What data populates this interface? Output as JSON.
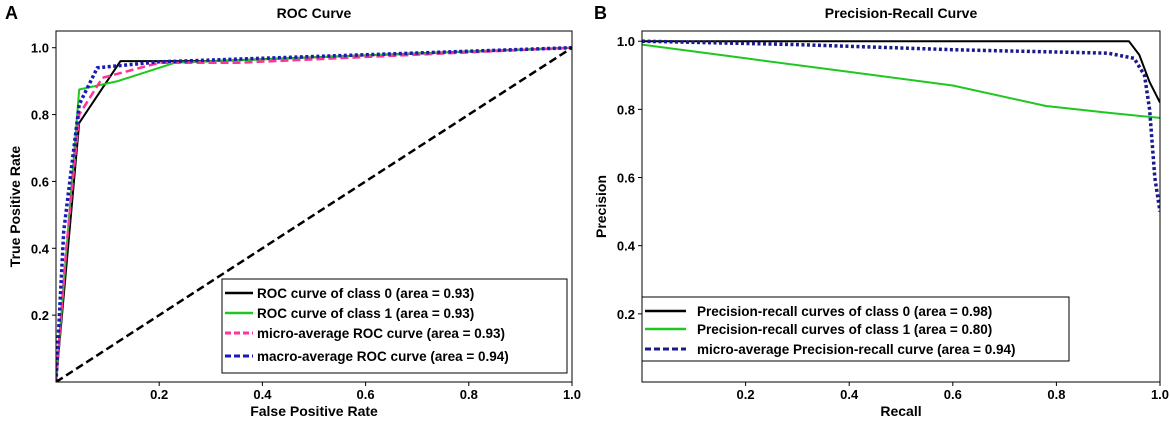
{
  "chart_data": [
    {
      "panel": "A",
      "type": "line",
      "title": "ROC Curve",
      "xlabel": "False Positive Rate",
      "ylabel": "True Positive Rate",
      "xlim": [
        0,
        1
      ],
      "ylim": [
        0,
        1.05
      ],
      "xticks": [
        0.2,
        0.4,
        0.6,
        0.8,
        1.0
      ],
      "xtick_labels": [
        "0.2",
        "0.4",
        "0.6",
        "0.8",
        "1.0"
      ],
      "yticks": [
        0.2,
        0.4,
        0.6,
        0.8,
        1.0
      ],
      "ytick_labels": [
        "0.2",
        "0.4",
        "0.6",
        "0.8",
        "1.0"
      ],
      "grid": false,
      "legend_position": "bottom-right",
      "series": [
        {
          "name": "ROC curve of class 0 (area = 0.93)",
          "color": "#000000",
          "style": "solid",
          "x": [
            0,
            0.045,
            0.125,
            0.3,
            1.0
          ],
          "y": [
            0,
            0.775,
            0.96,
            0.96,
            1.0
          ]
        },
        {
          "name": "ROC curve of class 1 (area = 0.93)",
          "color": "#1ec81e",
          "style": "solid",
          "x": [
            0,
            0.045,
            0.12,
            0.23,
            1.0
          ],
          "y": [
            0,
            0.875,
            0.9,
            0.955,
            1.0
          ]
        },
        {
          "name": "micro-average ROC curve (area = 0.93)",
          "color": "#ff3399",
          "style": "dashed",
          "x": [
            0,
            0.02,
            0.045,
            0.09,
            0.2,
            0.35,
            1.0
          ],
          "y": [
            0,
            0.4,
            0.8,
            0.91,
            0.955,
            0.955,
            1.0
          ]
        },
        {
          "name": "macro-average ROC curve (area = 0.94)",
          "color": "#1a1ab4",
          "style": "dotted",
          "x": [
            0,
            0.015,
            0.045,
            0.08,
            0.2,
            1.0
          ],
          "y": [
            0,
            0.45,
            0.83,
            0.94,
            0.958,
            1.0
          ]
        },
        {
          "name": "",
          "color": "#000000",
          "style": "dashed",
          "legend": false,
          "x": [
            0,
            1
          ],
          "y": [
            0,
            1
          ]
        }
      ]
    },
    {
      "panel": "B",
      "type": "line",
      "title": "Precision-Recall Curve",
      "xlabel": "Recall",
      "ylabel": "Precision",
      "xlim": [
        0,
        1
      ],
      "ylim": [
        0,
        1.03
      ],
      "xticks": [
        0.2,
        0.4,
        0.6,
        0.8,
        1.0
      ],
      "xtick_labels": [
        "0.2",
        "0.4",
        "0.6",
        "0.8",
        "1.0"
      ],
      "yticks": [
        0.2,
        0.4,
        0.6,
        0.8,
        1.0
      ],
      "ytick_labels": [
        "0.2",
        "0.4",
        "0.6",
        "0.8",
        "1.0"
      ],
      "grid": false,
      "legend_position": "bottom-left",
      "series": [
        {
          "name": "Precision-recall curves of class 0 (area = 0.98)",
          "color": "#000000",
          "style": "solid",
          "x": [
            0,
            0.94,
            0.96,
            0.98,
            1.0
          ],
          "y": [
            1.0,
            1.0,
            0.96,
            0.88,
            0.82
          ]
        },
        {
          "name": "Precision-recall curves of class 1 (area = 0.80)",
          "color": "#1ec81e",
          "style": "solid",
          "x": [
            0,
            0.2,
            0.4,
            0.6,
            0.78,
            0.9,
            1.0
          ],
          "y": [
            0.99,
            0.95,
            0.91,
            0.87,
            0.81,
            0.79,
            0.775
          ]
        },
        {
          "name": "micro-average Precision-recall curve (area = 0.94)",
          "color": "#1a1a8c",
          "style": "dotted",
          "x": [
            0,
            0.3,
            0.6,
            0.9,
            0.95,
            0.97,
            0.98,
            0.99,
            1.0
          ],
          "y": [
            1.0,
            0.99,
            0.975,
            0.965,
            0.95,
            0.9,
            0.8,
            0.6,
            0.5
          ]
        }
      ]
    }
  ]
}
